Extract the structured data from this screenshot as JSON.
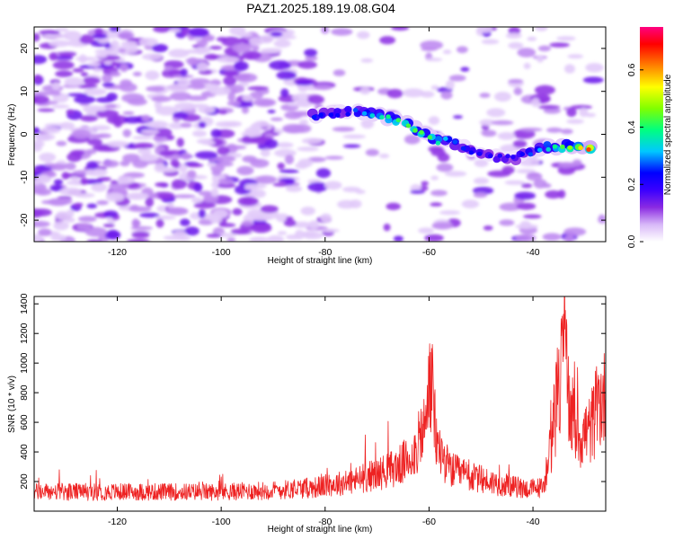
{
  "title": "PAZ1.2025.189.19.08.G04",
  "chart_data": [
    {
      "type": "heatmap",
      "xlabel": "Height of straight line (km)",
      "ylabel": "Frequency (Hz)",
      "xlim": [
        -136,
        -26
      ],
      "ylim": [
        -25,
        25
      ],
      "xticks": [
        -120,
        -100,
        -80,
        -60,
        -40
      ],
      "yticks": [
        -20,
        -10,
        0,
        10,
        20
      ],
      "colorbar": {
        "label": "Normalized spectral amplitude",
        "range": [
          0,
          0.75
        ],
        "ticks": [
          "0.0",
          "0.2",
          "0.4",
          "0.6"
        ],
        "tick_values": [
          0.0,
          0.2,
          0.4,
          0.6
        ],
        "colors": [
          "#ffffff",
          "#d8b8f8",
          "#8a2be2",
          "#3a00ff",
          "#0000ff",
          "#00c8ff",
          "#00ff80",
          "#80ff00",
          "#ffff00",
          "#ff8000",
          "#ff0000",
          "#ff0080"
        ]
      },
      "signal_ridge": [
        {
          "x": -82,
          "y": 4.5,
          "amp": 0.28
        },
        {
          "x": -76,
          "y": 5.2,
          "amp": 0.26
        },
        {
          "x": -70,
          "y": 4.8,
          "amp": 0.38
        },
        {
          "x": -65,
          "y": 3.0,
          "amp": 0.45
        },
        {
          "x": -60,
          "y": -1.0,
          "amp": 0.45
        },
        {
          "x": -55,
          "y": -2.0,
          "amp": 0.3
        },
        {
          "x": -50,
          "y": -4.5,
          "amp": 0.25
        },
        {
          "x": -44,
          "y": -5.8,
          "amp": 0.22
        },
        {
          "x": -38,
          "y": -3.0,
          "amp": 0.35
        },
        {
          "x": -32,
          "y": -2.8,
          "amp": 0.5
        },
        {
          "x": -28,
          "y": -3.0,
          "amp": 0.72
        }
      ]
    },
    {
      "type": "line",
      "xlabel": "Height of straight line (km)",
      "ylabel": "SNR (10 * v/v)",
      "xlim": [
        -136,
        -26
      ],
      "ylim": [
        0,
        1450
      ],
      "xticks": [
        -120,
        -100,
        -80,
        -60,
        -40
      ],
      "yticks": [
        200,
        400,
        600,
        800,
        1000,
        1200,
        1400
      ],
      "color": "#ee2222",
      "envelope": [
        {
          "x": -136,
          "y": 130
        },
        {
          "x": -120,
          "y": 130
        },
        {
          "x": -100,
          "y": 130
        },
        {
          "x": -90,
          "y": 140
        },
        {
          "x": -82,
          "y": 160
        },
        {
          "x": -75,
          "y": 200
        },
        {
          "x": -70,
          "y": 250
        },
        {
          "x": -66,
          "y": 300
        },
        {
          "x": -63,
          "y": 380
        },
        {
          "x": -61,
          "y": 550
        },
        {
          "x": -59.5,
          "y": 800
        },
        {
          "x": -58.5,
          "y": 450
        },
        {
          "x": -56,
          "y": 280
        },
        {
          "x": -52,
          "y": 230
        },
        {
          "x": -46,
          "y": 180
        },
        {
          "x": -41,
          "y": 150
        },
        {
          "x": -38,
          "y": 160
        },
        {
          "x": -36.5,
          "y": 450
        },
        {
          "x": -35,
          "y": 850
        },
        {
          "x": -34,
          "y": 1050
        },
        {
          "x": -33,
          "y": 700
        },
        {
          "x": -31,
          "y": 500
        },
        {
          "x": -29,
          "y": 550
        },
        {
          "x": -27,
          "y": 750
        },
        {
          "x": -26,
          "y": 760
        }
      ]
    }
  ]
}
